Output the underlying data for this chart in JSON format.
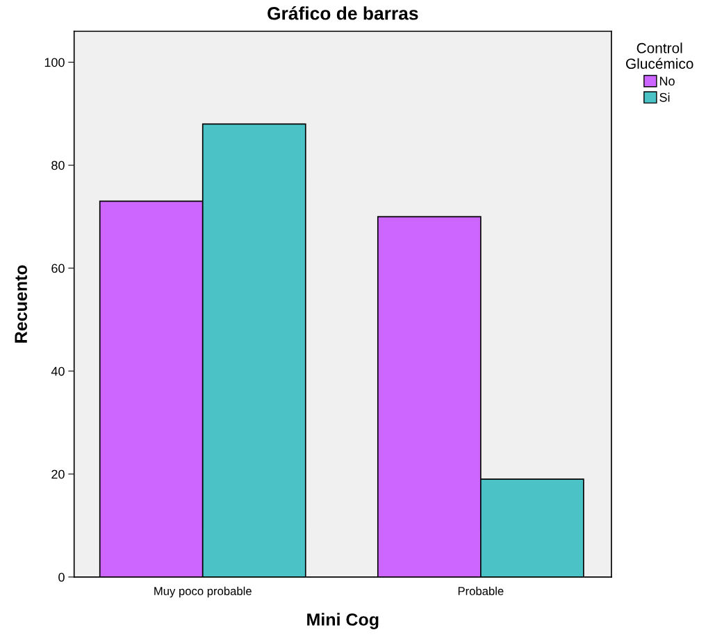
{
  "chart_data": {
    "type": "bar",
    "title": "Gráfico de barras",
    "xlabel": "Mini Cog",
    "ylabel": "Recuento",
    "legend_title": "Control\nGlucémico",
    "categories": [
      "Muy poco probable",
      "Probable"
    ],
    "series": [
      {
        "name": "No",
        "color": "#cc66ff",
        "values": [
          73,
          70
        ]
      },
      {
        "name": "Si",
        "color": "#4ac2c6",
        "values": [
          88,
          19
        ]
      }
    ],
    "ylim": [
      0,
      106
    ],
    "yticks": [
      0,
      20,
      40,
      60,
      80,
      100
    ],
    "grid": false,
    "legend": "right"
  }
}
